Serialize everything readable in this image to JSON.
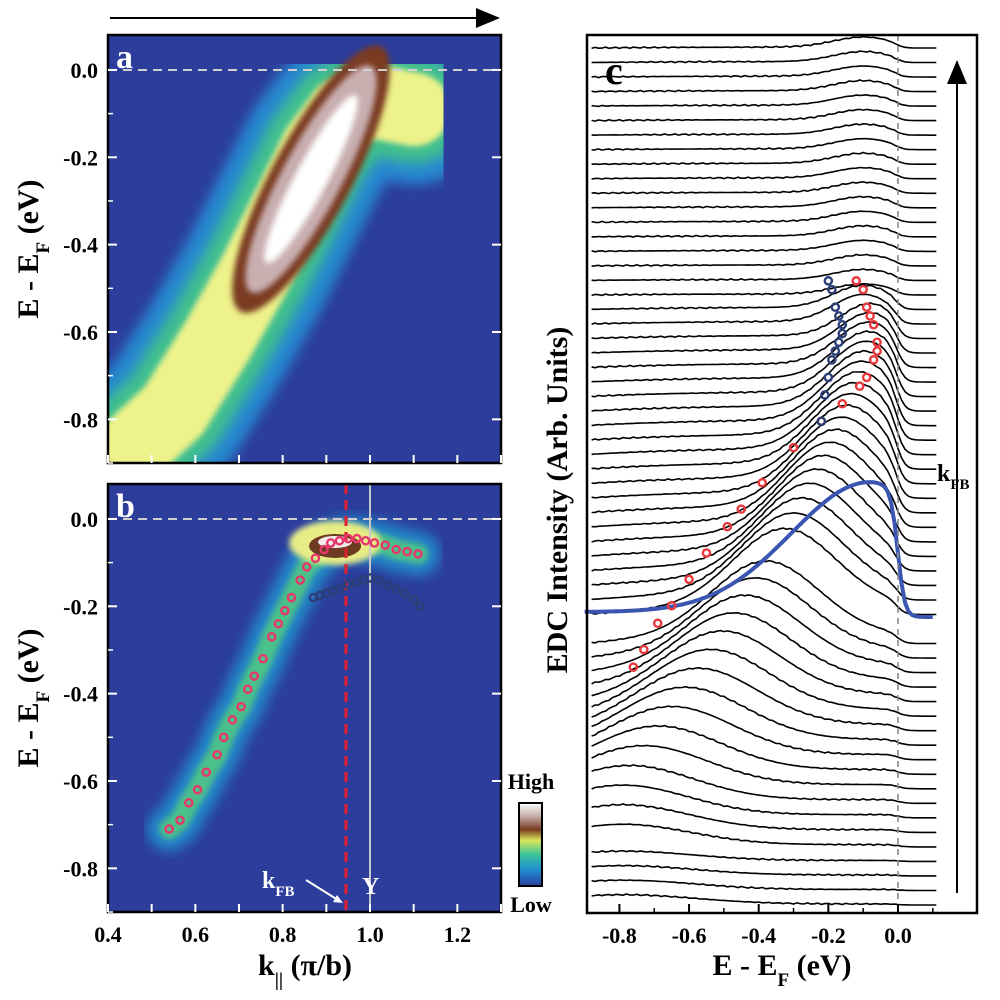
{
  "chart_data": [
    {
      "panel": "a",
      "type": "heatmap",
      "ylabel": "E - E",
      "ylabel_sub": "F",
      "ylabel_unit": "(eV)",
      "xlim": [
        0.4,
        1.3
      ],
      "ylim": [
        -0.9,
        0.08
      ],
      "yticks": [
        "0.0",
        "-0.2",
        "-0.4",
        "-0.6",
        "-0.8"
      ],
      "ytick_values": [
        0.0,
        -0.2,
        -0.4,
        -0.6,
        -0.8
      ],
      "fermi_line": 0.0,
      "colormap": [
        "#2b3fa0",
        "#1f8fcf",
        "#3cc59a",
        "#9fe05b",
        "#f4f08a",
        "#7a3a20",
        "#c9b3b0",
        "#ffffff"
      ],
      "band_centers": [
        {
          "x": 0.42,
          "y": -0.9
        },
        {
          "x": 0.55,
          "y": -0.78
        },
        {
          "x": 0.65,
          "y": -0.62
        },
        {
          "x": 0.74,
          "y": -0.46
        },
        {
          "x": 0.82,
          "y": -0.3
        },
        {
          "x": 0.88,
          "y": -0.18
        },
        {
          "x": 0.94,
          "y": -0.1
        },
        {
          "x": 1.0,
          "y": -0.07
        },
        {
          "x": 1.1,
          "y": -0.09
        }
      ],
      "hot_spot": {
        "x": 0.865,
        "y": -0.25
      }
    },
    {
      "panel": "b",
      "type": "heatmap",
      "xlabel": "k",
      "xlabel_sub": "||",
      "xlabel_unit": "(π/b)",
      "ylabel": "E - E",
      "ylabel_sub": "F",
      "ylabel_unit": "(eV)",
      "xlim": [
        0.4,
        1.3
      ],
      "ylim": [
        -0.9,
        0.08
      ],
      "xticks": [
        "0.4",
        "0.6",
        "0.8",
        "1.0",
        "1.2"
      ],
      "xtick_values": [
        0.4,
        0.6,
        0.8,
        1.0,
        1.2
      ],
      "yticks": [
        "0.0",
        "-0.2",
        "-0.4",
        "-0.6",
        "-0.8"
      ],
      "ytick_values": [
        0.0,
        -0.2,
        -0.4,
        -0.6,
        -0.8
      ],
      "fermi_line": 0.0,
      "kFB": 0.945,
      "Y_point": 1.0,
      "kFB_label": "k",
      "kFB_label_sub": "FB",
      "Y_label": "Y",
      "colorbar": {
        "high": "High",
        "low": "Low"
      },
      "series": [
        {
          "marker_color": "#e8386b",
          "x": [
            0.54,
            0.565,
            0.585,
            0.605,
            0.625,
            0.65,
            0.665,
            0.685,
            0.705,
            0.72,
            0.735,
            0.755,
            0.775,
            0.79,
            0.805,
            0.82,
            0.84,
            0.855,
            0.875,
            0.895,
            0.91,
            0.93,
            0.95,
            0.97,
            0.99,
            1.01,
            1.035,
            1.06,
            1.085,
            1.11
          ],
          "y": [
            -0.71,
            -0.69,
            -0.65,
            -0.62,
            -0.58,
            -0.54,
            -0.5,
            -0.46,
            -0.43,
            -0.39,
            -0.36,
            -0.32,
            -0.27,
            -0.24,
            -0.21,
            -0.18,
            -0.14,
            -0.11,
            -0.09,
            -0.07,
            -0.055,
            -0.05,
            -0.045,
            -0.045,
            -0.05,
            -0.055,
            -0.06,
            -0.07,
            -0.075,
            -0.08
          ]
        },
        {
          "marker_color": "#2c3e78",
          "x": [
            0.87,
            0.885,
            0.9,
            0.915,
            0.93,
            0.95,
            0.97,
            0.985,
            1.0,
            1.02,
            1.04,
            1.06,
            1.08,
            1.1,
            1.115
          ],
          "y": [
            -0.18,
            -0.175,
            -0.17,
            -0.165,
            -0.16,
            -0.15,
            -0.145,
            -0.14,
            -0.135,
            -0.14,
            -0.15,
            -0.16,
            -0.17,
            -0.185,
            -0.2
          ]
        }
      ]
    },
    {
      "panel": "c",
      "type": "line",
      "xlabel": "E - E",
      "xlabel_sub": "F",
      "xlabel_unit": "(eV)",
      "ylabel": "EDC Intensity (Arb. Units)",
      "xlim": [
        -0.9,
        0.12
      ],
      "xticks": [
        "-0.8",
        "-0.6",
        "-0.4",
        "-0.2",
        "0.0"
      ],
      "xtick_values": [
        -0.8,
        -0.6,
        -0.4,
        -0.2,
        0.0
      ],
      "fermi_line": 0.0,
      "kFB_label": "k",
      "kFB_label_sub": "FB",
      "highlight_color": "#3a56b0",
      "edc_peaks_red": [
        {
          "x": -0.76,
          "y": 0.28
        },
        {
          "x": -0.73,
          "y": 0.3
        },
        {
          "x": -0.69,
          "y": 0.33
        },
        {
          "x": -0.65,
          "y": 0.35
        },
        {
          "x": -0.6,
          "y": 0.38
        },
        {
          "x": -0.55,
          "y": 0.41
        },
        {
          "x": -0.49,
          "y": 0.44
        },
        {
          "x": -0.45,
          "y": 0.46
        },
        {
          "x": -0.39,
          "y": 0.49
        },
        {
          "x": -0.3,
          "y": 0.53
        },
        {
          "x": -0.22,
          "y": 0.56
        },
        {
          "x": -0.16,
          "y": 0.58
        },
        {
          "x": -0.11,
          "y": 0.6
        },
        {
          "x": -0.09,
          "y": 0.61
        },
        {
          "x": -0.07,
          "y": 0.63
        },
        {
          "x": -0.06,
          "y": 0.64
        },
        {
          "x": -0.06,
          "y": 0.65
        },
        {
          "x": -0.07,
          "y": 0.67
        },
        {
          "x": -0.08,
          "y": 0.68
        },
        {
          "x": -0.09,
          "y": 0.69
        },
        {
          "x": -0.1,
          "y": 0.71
        },
        {
          "x": -0.12,
          "y": 0.72
        }
      ],
      "edc_peaks_blue": [
        {
          "x": -0.22,
          "y": 0.56
        },
        {
          "x": -0.21,
          "y": 0.59
        },
        {
          "x": -0.2,
          "y": 0.61
        },
        {
          "x": -0.19,
          "y": 0.63
        },
        {
          "x": -0.18,
          "y": 0.64
        },
        {
          "x": -0.17,
          "y": 0.65
        },
        {
          "x": -0.16,
          "y": 0.66
        },
        {
          "x": -0.16,
          "y": 0.67
        },
        {
          "x": -0.17,
          "y": 0.68
        },
        {
          "x": -0.18,
          "y": 0.69
        },
        {
          "x": -0.19,
          "y": 0.71
        },
        {
          "x": -0.2,
          "y": 0.72
        }
      ]
    }
  ]
}
